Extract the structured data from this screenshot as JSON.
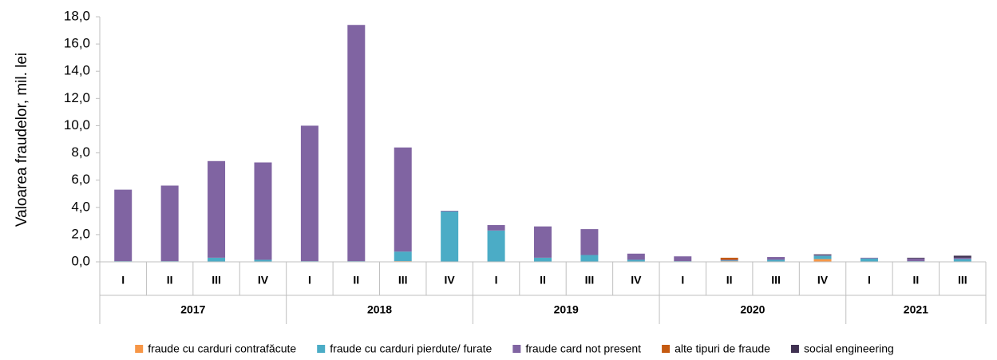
{
  "chart_data": {
    "type": "stacked_bar",
    "y_label": "Valoarea fraudelor, mil. lei",
    "groups": [
      {
        "name": "2017",
        "categories": [
          "I",
          "II",
          "III",
          "IV"
        ]
      },
      {
        "name": "2018",
        "categories": [
          "I",
          "II",
          "III",
          "IV"
        ]
      },
      {
        "name": "2019",
        "categories": [
          "I",
          "II",
          "III",
          "IV"
        ]
      },
      {
        "name": "2020",
        "categories": [
          "I",
          "II",
          "III",
          "IV"
        ]
      },
      {
        "name": "2021",
        "categories": [
          "I",
          "II",
          "III"
        ]
      }
    ],
    "series": [
      {
        "name": "fraude cu carduri contrafăcute",
        "color": "#f79646",
        "values": [
          0,
          0,
          0,
          0,
          0,
          0,
          0.05,
          0,
          0,
          0,
          0,
          0,
          0,
          0.05,
          0,
          0.2,
          0,
          0,
          0
        ]
      },
      {
        "name": "fraude cu carduri pierdute/ furate",
        "color": "#4bacc6",
        "values": [
          0.05,
          0.05,
          0.3,
          0.15,
          0.05,
          0.05,
          0.7,
          3.7,
          2.3,
          0.3,
          0.5,
          0.15,
          0.05,
          0.05,
          0.15,
          0.25,
          0.25,
          0.05,
          0.2
        ]
      },
      {
        "name": "fraude card not present",
        "color": "#8064a2",
        "values": [
          5.25,
          5.55,
          7.1,
          7.15,
          9.95,
          17.35,
          7.65,
          0.05,
          0.4,
          2.3,
          1.9,
          0.45,
          0.35,
          0.05,
          0.2,
          0.05,
          0.05,
          0.2,
          0.1
        ]
      },
      {
        "name": "alte tipuri de fraude",
        "color": "#c55a11",
        "values": [
          0,
          0,
          0,
          0,
          0,
          0,
          0,
          0,
          0,
          0,
          0,
          0,
          0,
          0.15,
          0,
          0,
          0,
          0,
          0
        ]
      },
      {
        "name": "social engineering",
        "color": "#403152",
        "values": [
          0,
          0,
          0,
          0,
          0,
          0,
          0,
          0,
          0,
          0,
          0,
          0,
          0,
          0,
          0,
          0.05,
          0,
          0.05,
          0.15
        ]
      }
    ],
    "ylim": [
      0,
      18
    ],
    "yticks": [
      {
        "value": 0,
        "label": "0,0"
      },
      {
        "value": 2,
        "label": "2,0"
      },
      {
        "value": 4,
        "label": "4,0"
      },
      {
        "value": 6,
        "label": "6,0"
      },
      {
        "value": 8,
        "label": "8,0"
      },
      {
        "value": 10,
        "label": "10,0"
      },
      {
        "value": 12,
        "label": "12,0"
      },
      {
        "value": 14,
        "label": "14,0"
      },
      {
        "value": 16,
        "label": "16,0"
      },
      {
        "value": 18,
        "label": "18,0"
      }
    ],
    "legend": "bottom"
  }
}
